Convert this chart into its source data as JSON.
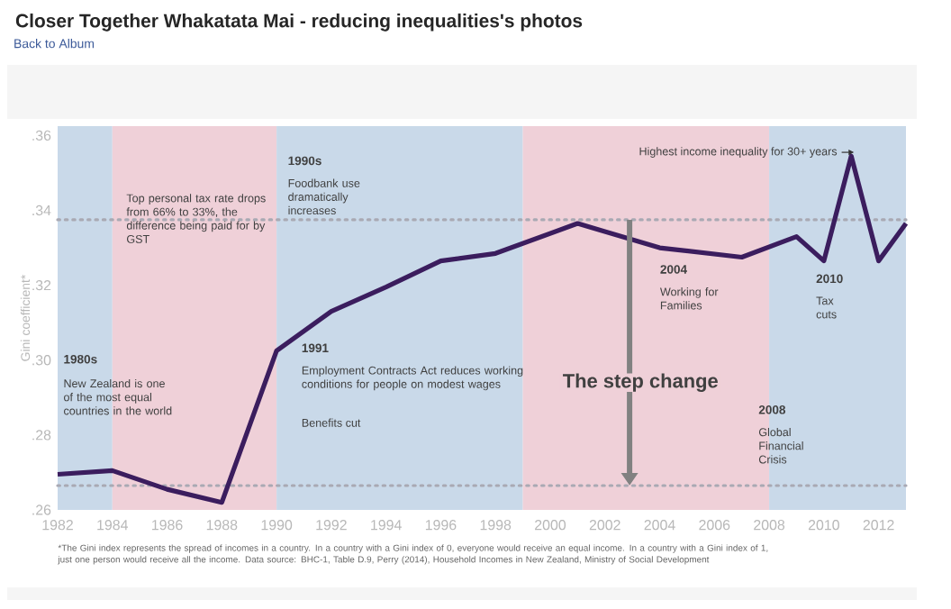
{
  "chart_data": {
    "type": "line",
    "title": "Closer Together Whakatata Mai - reducing inequalities's photos",
    "subtitle": "Back to Album",
    "ylabel": "Gini coefficient*",
    "x": [
      1982,
      1984,
      1986,
      1988,
      1990,
      1992,
      1994,
      1996,
      1998,
      2001,
      2004,
      2007,
      2009,
      2010,
      2011,
      2012,
      2013
    ],
    "series": [
      {
        "color": "#3b1d5e",
        "values": [
          0.2695,
          0.2705,
          0.2655,
          0.262,
          0.3025,
          0.313,
          0.3195,
          0.3265,
          0.3285,
          0.3365,
          0.33,
          0.3275,
          0.333,
          0.3265,
          0.3545,
          0.3265,
          0.3365
        ]
      }
    ],
    "marker": "none",
    "line_style": "solid",
    "xlim": [
      1982,
      2013
    ],
    "ylim": [
      0.26,
      0.3625
    ],
    "xticks": [
      1982,
      1984,
      1986,
      1988,
      1990,
      1992,
      1994,
      1996,
      1998,
      2000,
      2002,
      2004,
      2006,
      2008,
      2010,
      2012
    ],
    "yticks": [
      {
        "value": 0.26,
        "label": ".26"
      },
      {
        "value": 0.28,
        "label": ".28"
      },
      {
        "value": 0.3,
        "label": ".30"
      },
      {
        "value": 0.32,
        "label": ".32"
      },
      {
        "value": 0.34,
        "label": ".34"
      },
      {
        "value": 0.36,
        "label": ".36"
      }
    ],
    "bands": [
      {
        "axis": "x",
        "from": 1982,
        "to": 1984,
        "color": "#c9d9e9"
      },
      {
        "axis": "x",
        "from": 1984,
        "to": 1990,
        "color": "#efd0d8"
      },
      {
        "axis": "x",
        "from": 1990,
        "to": 1999,
        "color": "#c9d9e9"
      },
      {
        "axis": "x",
        "from": 1999,
        "to": 2008,
        "color": "#efd0d8"
      },
      {
        "axis": "x",
        "from": 2008,
        "to": 2013,
        "color": "#c9d9e9"
      }
    ],
    "ref_lines": [
      {
        "axis": "y",
        "value": 0.3375,
        "color": "#a9a9b3",
        "line_style": "dotted"
      },
      {
        "axis": "y",
        "value": 0.2665,
        "color": "#a9a9b3",
        "line_style": "dotted"
      }
    ],
    "annotations": [
      "1980s",
      "New Zealand is one of the most equal countries in the world",
      "Top personal tax rate drops from 66% to 33%, the difference being paid for by GST",
      "1990s",
      "Foodbank use dramatically increases",
      "1991",
      "Employment Contracts Act reduces working conditions for people on modest wages",
      "Benefits cut",
      "Highest income inequality for 30+ years",
      "The step change",
      "2004",
      "Working for Families",
      "2010",
      "Tax cuts",
      "2008",
      "Global Financial Crisis",
      "*The Gini index represents the spread of incomes in a country. In a country with a Gini index of 0, everyone would receive an equal income. In a country with a Gini index of 1, just one person would receive all the income. Data source: BHC-1, Table D.9, Perry (2014), Household Incomes in New Zealand, Ministry of Social Development"
    ]
  }
}
